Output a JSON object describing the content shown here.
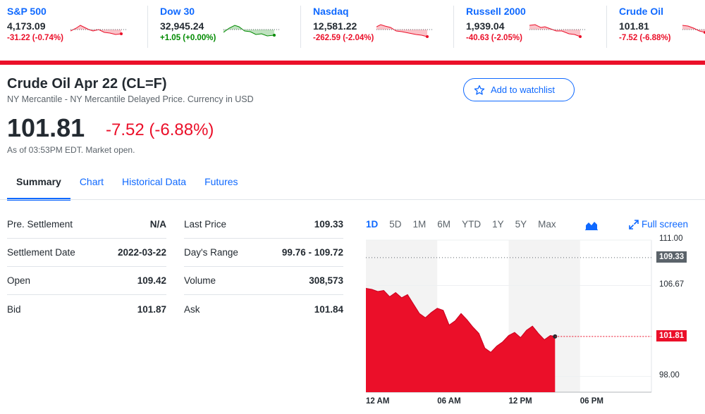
{
  "ticker": [
    {
      "name": "S&P 500",
      "price": "4,173.09",
      "change": "-31.22 (-0.74%)",
      "direction": "down"
    },
    {
      "name": "Dow 30",
      "price": "32,945.24",
      "change": "+1.05 (+0.00%)",
      "direction": "up"
    },
    {
      "name": "Nasdaq",
      "price": "12,581.22",
      "change": "-262.59 (-2.04%)",
      "direction": "down"
    },
    {
      "name": "Russell 2000",
      "price": "1,939.04",
      "change": "-40.63 (-2.05%)",
      "direction": "down"
    },
    {
      "name": "Crude Oil",
      "price": "101.81",
      "change": "-7.52 (-6.88%)",
      "direction": "down"
    }
  ],
  "quote": {
    "title": "Crude Oil Apr 22 (CL=F)",
    "subtitle": "NY Mercantile - NY Mercantile Delayed Price. Currency in USD",
    "price": "101.81",
    "change": "-7.52 (-6.88%)",
    "as_of": "As of 03:53PM EDT. Market open.",
    "watchlist_label": "Add to watchlist"
  },
  "tabs": [
    {
      "label": "Summary",
      "active": true
    },
    {
      "label": "Chart",
      "active": false
    },
    {
      "label": "Historical Data",
      "active": false
    },
    {
      "label": "Futures",
      "active": false
    }
  ],
  "stats_left": [
    {
      "label": "Pre. Settlement",
      "value": "N/A"
    },
    {
      "label": "Settlement Date",
      "value": "2022-03-22"
    },
    {
      "label": "Open",
      "value": "109.42"
    },
    {
      "label": "Bid",
      "value": "101.87"
    }
  ],
  "stats_right": [
    {
      "label": "Last Price",
      "value": "109.33"
    },
    {
      "label": "Day's Range",
      "value": "99.76 - 109.72"
    },
    {
      "label": "Volume",
      "value": "308,573"
    },
    {
      "label": "Ask",
      "value": "101.84"
    }
  ],
  "chart": {
    "ranges": [
      "1D",
      "5D",
      "1M",
      "6M",
      "YTD",
      "1Y",
      "5Y",
      "Max"
    ],
    "active_range": "1D",
    "fullscreen_label": "Full screen",
    "colors": {
      "fill": "#eb0f29",
      "accent": "#0f69ff",
      "prev_close": "#5b636a",
      "shade": "#f3f3f3"
    }
  },
  "chart_data": {
    "type": "area",
    "x_labels": [
      "12 AM",
      "06 AM",
      "12 PM",
      "06 PM"
    ],
    "y_ticks": [
      "111.00",
      "106.67",
      "98.00"
    ],
    "ylim": [
      96.5,
      111.0
    ],
    "previous_close": 109.33,
    "last": 101.81,
    "x": [
      0.0,
      0.5,
      1.0,
      1.5,
      2.0,
      2.5,
      3.0,
      3.5,
      4.0,
      4.5,
      5.0,
      5.5,
      6.0,
      6.5,
      7.0,
      7.5,
      8.0,
      8.5,
      9.0,
      9.5,
      10.0,
      10.5,
      11.0,
      11.5,
      12.0,
      12.5,
      13.0,
      13.5,
      14.0,
      14.5,
      15.0,
      15.5,
      15.9
    ],
    "y": [
      106.4,
      106.3,
      106.1,
      106.2,
      105.6,
      106.0,
      105.5,
      105.8,
      104.9,
      104.0,
      103.6,
      104.1,
      104.5,
      104.3,
      102.9,
      103.3,
      104.0,
      103.4,
      102.7,
      102.1,
      100.7,
      100.3,
      100.9,
      101.3,
      101.9,
      102.2,
      101.7,
      102.4,
      102.8,
      102.1,
      101.5,
      101.9,
      101.81
    ],
    "series": [
      {
        "name": "Price",
        "values": [
          106.4,
          106.3,
          106.1,
          106.2,
          105.6,
          106.0,
          105.5,
          105.8,
          104.9,
          104.0,
          103.6,
          104.1,
          104.5,
          104.3,
          102.9,
          103.3,
          104.0,
          103.4,
          102.7,
          102.1,
          100.7,
          100.3,
          100.9,
          101.3,
          101.9,
          102.2,
          101.7,
          102.4,
          102.8,
          102.1,
          101.5,
          101.9,
          101.81
        ]
      }
    ]
  }
}
